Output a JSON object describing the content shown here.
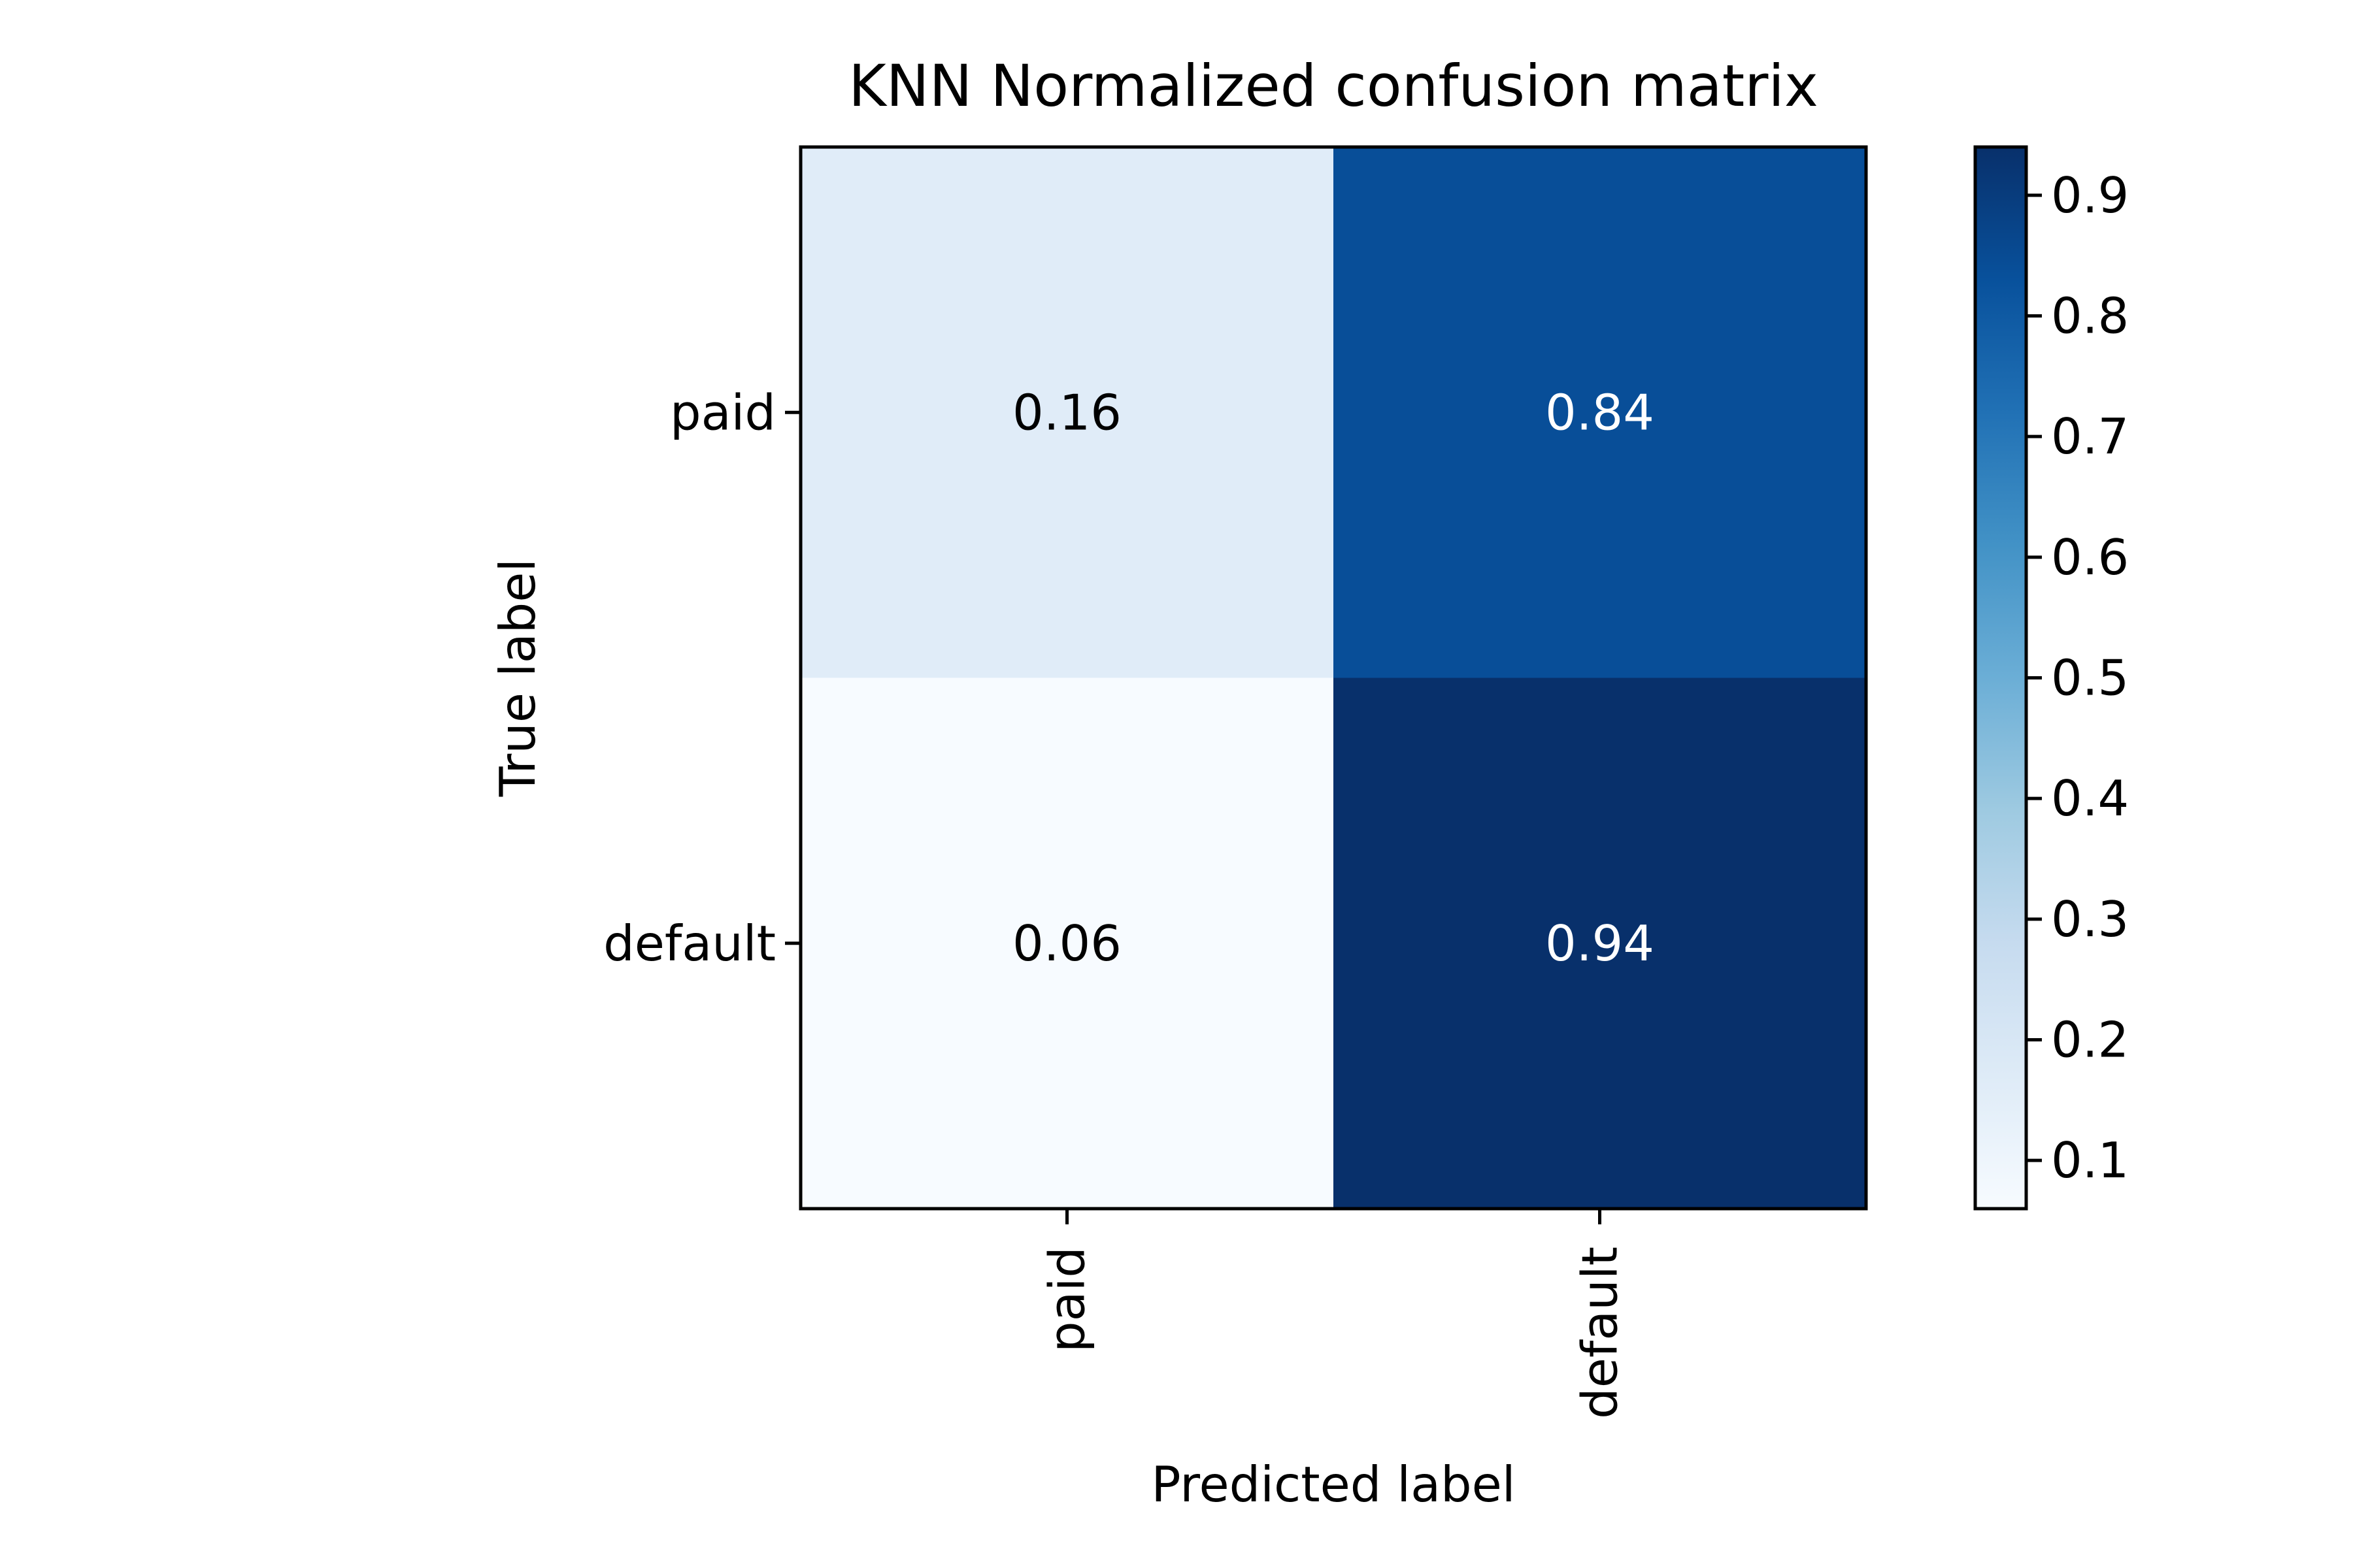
{
  "chart_data": {
    "type": "heatmap",
    "title": "KNN Normalized confusion matrix",
    "xlabel": "Predicted label",
    "ylabel": "True label",
    "x_categories": [
      "paid",
      "default"
    ],
    "y_categories": [
      "paid",
      "default"
    ],
    "values": [
      [
        0.16,
        0.84
      ],
      [
        0.06,
        0.94
      ]
    ],
    "value_labels": [
      [
        "0.16",
        "0.84"
      ],
      [
        "0.06",
        "0.94"
      ]
    ],
    "colormap": "Blues",
    "vmin": 0.06,
    "vmax": 0.94,
    "colorbar_ticks": [
      0.1,
      0.2,
      0.3,
      0.4,
      0.5,
      0.6,
      0.7,
      0.8,
      0.9
    ],
    "colorbar_tick_labels": [
      "0.1",
      "0.2",
      "0.3",
      "0.4",
      "0.5",
      "0.6",
      "0.7",
      "0.8",
      "0.9"
    ],
    "x_tick_rotation": "vertical",
    "grid": false,
    "colors": {
      "low": "#f7fbff",
      "high": "#08306b",
      "text_on_light": "#000000",
      "text_on_dark": "#ffffff"
    }
  }
}
